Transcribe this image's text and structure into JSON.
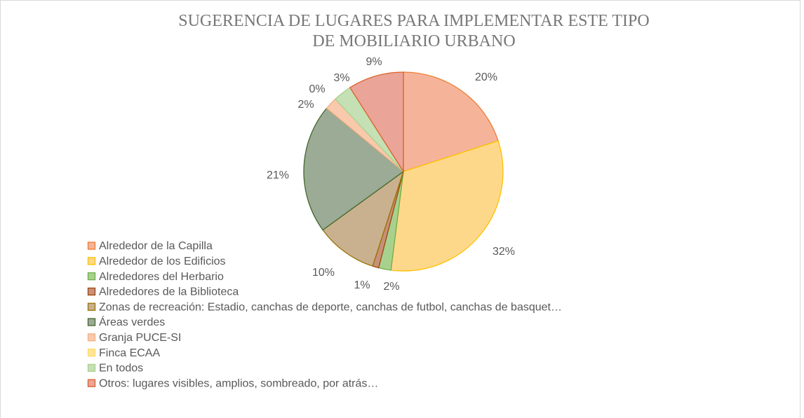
{
  "chart_data": {
    "type": "pie",
    "title": "SUGERENCIA DE LUGARES PARA IMPLEMENTAR ESTE TIPO DE MOBILIARIO URBANO",
    "categories": [
      "Alrededor de la Capilla",
      "Alrededor de los Edificios",
      "Alrededores del Herbario",
      "Alrededores de la Biblioteca",
      "Zonas de recreación: Estadio, canchas de deporte, canchas de futbol, canchas de basquet…",
      "Áreas verdes",
      "Granja PUCE-SI",
      "Finca ECAA",
      "En todos",
      "Otros: lugares visibles, amplios, sombreado, por atrás…"
    ],
    "values": [
      20,
      32,
      2,
      1,
      10,
      21,
      2,
      0,
      3,
      9
    ],
    "value_labels": [
      "20%",
      "32%",
      "2%",
      "1%",
      "10%",
      "21%",
      "2%",
      "0%",
      "3%",
      "9%"
    ],
    "colors": [
      "#f5b49a",
      "#fed88a",
      "#a9d18e",
      "#c8907a",
      "#c9b18f",
      "#9bab96",
      "#f8c9ad",
      "#ffe699",
      "#c5e0b4",
      "#eba498"
    ],
    "edge_colors": [
      "#ed7d31",
      "#ffc000",
      "#70ad47",
      "#9e480e",
      "#997300",
      "#43682b",
      "#f4b183",
      "#ffd966",
      "#a9d18e",
      "#d9622b"
    ],
    "legend": "left"
  }
}
